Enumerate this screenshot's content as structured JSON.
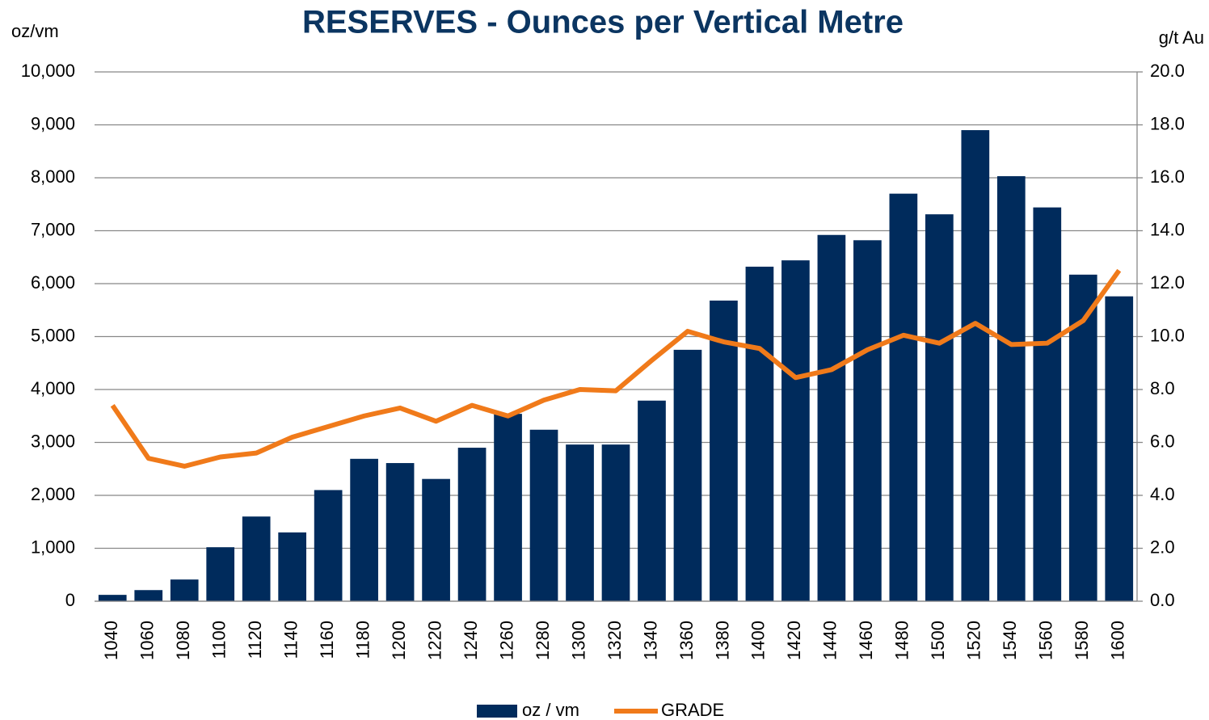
{
  "chart_data": {
    "type": "bar-line",
    "title": "RESERVES - Ounces per Vertical Metre",
    "y_label": "oz/vm",
    "y2_label": "g/t Au",
    "categories": [
      "1040",
      "1060",
      "1080",
      "1100",
      "1120",
      "1140",
      "1160",
      "1180",
      "1200",
      "1220",
      "1240",
      "1260",
      "1280",
      "1300",
      "1320",
      "1340",
      "1360",
      "1380",
      "1400",
      "1420",
      "1440",
      "1460",
      "1480",
      "1500",
      "1520",
      "1540",
      "1560",
      "1580",
      "1600"
    ],
    "series": [
      {
        "name": "oz / vm",
        "type": "bar",
        "color": "#002b5c",
        "values": [
          120,
          210,
          410,
          1020,
          1600,
          1300,
          2100,
          2690,
          2610,
          2310,
          2900,
          3540,
          3240,
          2960,
          2960,
          3790,
          4750,
          5680,
          6320,
          6440,
          6920,
          6820,
          7700,
          7310,
          8900,
          8030,
          7440,
          6170,
          5760
        ]
      },
      {
        "name": "GRADE",
        "type": "line",
        "axis": "y2",
        "color": "#f07a1a",
        "values": [
          7.4,
          5.4,
          5.1,
          5.45,
          5.6,
          6.2,
          6.6,
          7.0,
          7.3,
          6.8,
          7.4,
          7.0,
          7.6,
          8.0,
          7.95,
          9.1,
          10.2,
          9.8,
          9.55,
          8.45,
          8.75,
          9.5,
          10.05,
          9.75,
          10.5,
          9.7,
          9.75,
          10.6,
          12.5
        ]
      }
    ],
    "ylim": [
      0,
      10000
    ],
    "yticks": [
      0,
      {
        "value": 1000,
        "label": "1,000"
      },
      {
        "value": 2000,
        "label": "2,000"
      },
      {
        "value": 3000,
        "label": "3,000"
      },
      {
        "value": 4000,
        "label": "4,000"
      },
      {
        "value": 5000,
        "label": "5,000"
      },
      {
        "value": 6000,
        "label": "6,000"
      },
      {
        "value": 7000,
        "label": "7,000"
      },
      {
        "value": 8000,
        "label": "8,000"
      },
      {
        "value": 9000,
        "label": "9,000"
      },
      {
        "value": 10000,
        "label": "10,000"
      }
    ],
    "y2lim": [
      0,
      20
    ],
    "y2ticks": [
      {
        "value": 0,
        "label": "0.0"
      },
      {
        "value": 2,
        "label": "2.0"
      },
      {
        "value": 4,
        "label": "4.0"
      },
      {
        "value": 6,
        "label": "6.0"
      },
      {
        "value": 8,
        "label": "8.0"
      },
      {
        "value": 10,
        "label": "10.0"
      },
      {
        "value": 12,
        "label": "12.0"
      },
      {
        "value": 14,
        "label": "14.0"
      },
      {
        "value": 16,
        "label": "16.0"
      },
      {
        "value": 18,
        "label": "18.0"
      },
      {
        "value": 20,
        "label": "20.0"
      }
    ],
    "grid": true,
    "legend": "bottom"
  }
}
